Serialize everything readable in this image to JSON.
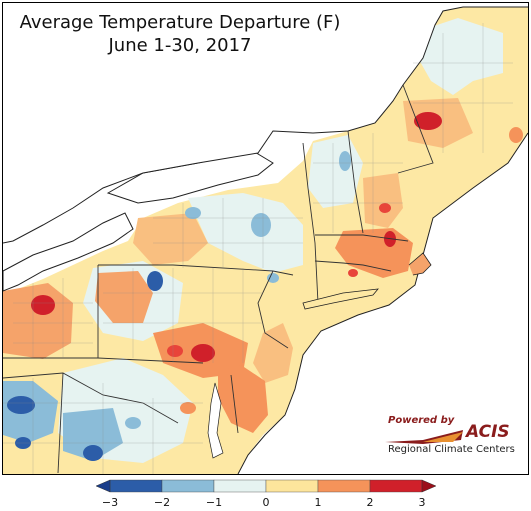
{
  "title": "Average Temperature Departure (F)",
  "subtitle": "June 1-30, 2017",
  "logo": {
    "powered_by": "Powered by",
    "acis": "ACIS",
    "rcc": "Regional Climate Centers"
  },
  "legend": {
    "ticks": [
      "−3",
      "−2",
      "−1",
      "0",
      "1",
      "2",
      "3"
    ],
    "colors": [
      "#2c5da8",
      "#8bbcd8",
      "#e6f3f1",
      "#fde59c",
      "#f5935a",
      "#d0202a"
    ]
  }
}
